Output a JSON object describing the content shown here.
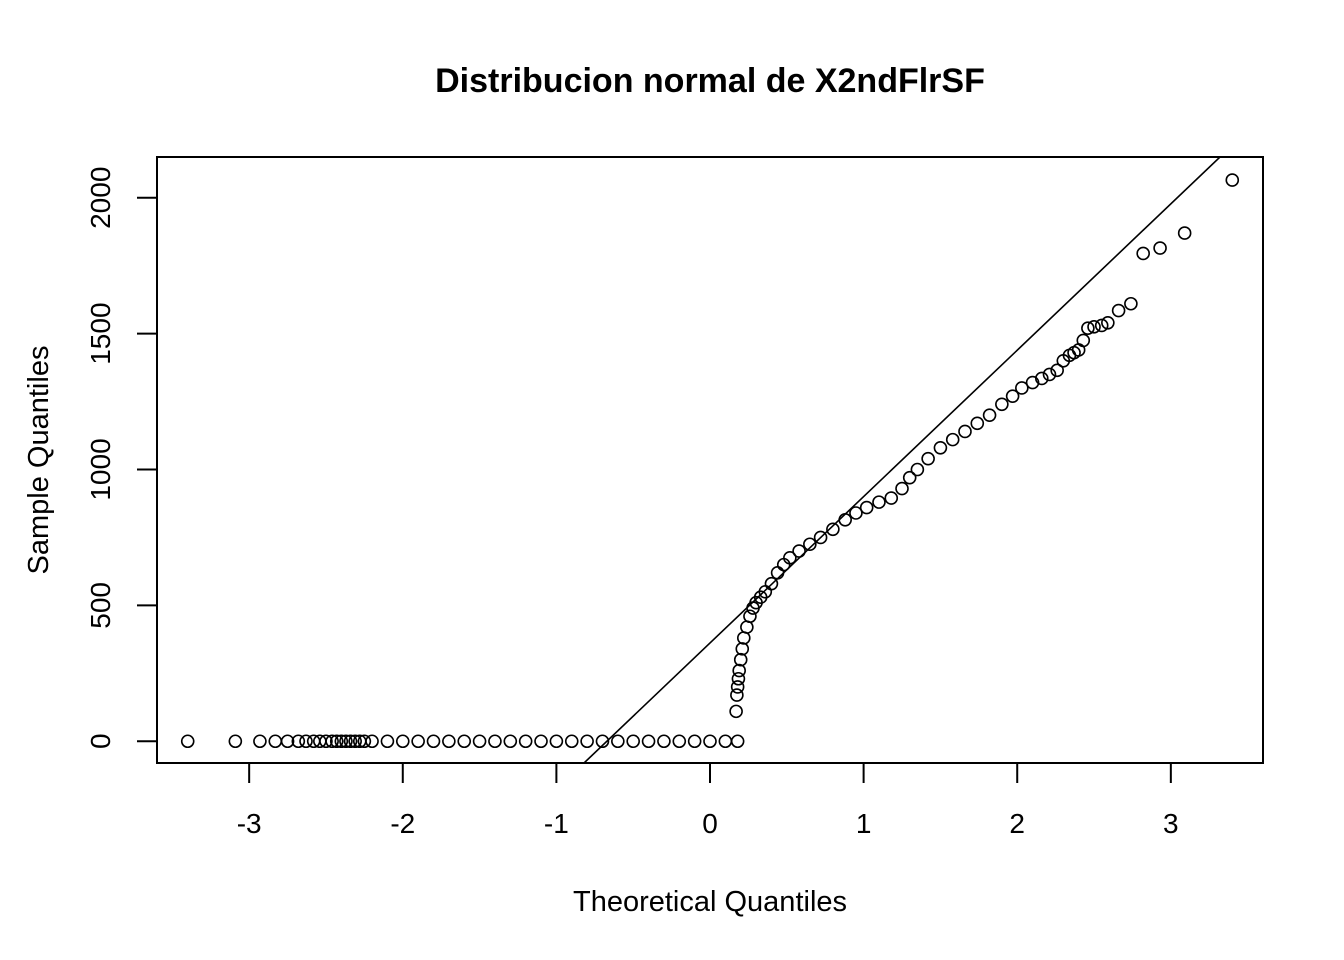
{
  "chart_data": {
    "type": "scatter",
    "title": "Distribucion normal de X2ndFlrSF",
    "xlabel": "Theoretical Quantiles",
    "ylabel": "Sample Quantiles",
    "xlim": [
      -3.6,
      3.6
    ],
    "ylim": [
      -80,
      2150
    ],
    "x_ticks": [
      -3,
      -2,
      -1,
      0,
      1,
      2,
      3
    ],
    "x_tick_labels": [
      "-3",
      "-2",
      "-1",
      "0",
      "1",
      "2",
      "3"
    ],
    "y_ticks": [
      0,
      500,
      1000,
      1500,
      2000
    ],
    "y_tick_labels": [
      "0",
      "500",
      "1000",
      "1500",
      "2000"
    ],
    "grid": false,
    "legend": "none",
    "reference_line": {
      "x1": -0.82,
      "y1": -80,
      "x2": 3.32,
      "y2": 2150
    },
    "series": [
      {
        "points": [
          [
            -3.4,
            0
          ],
          [
            -3.09,
            0
          ],
          [
            -2.93,
            0
          ],
          [
            -2.83,
            0
          ],
          [
            -2.75,
            0
          ],
          [
            -2.68,
            0
          ],
          [
            -2.63,
            0
          ],
          [
            -2.58,
            0
          ],
          [
            -2.54,
            0
          ],
          [
            -2.5,
            0
          ],
          [
            -2.46,
            0
          ],
          [
            -2.43,
            0
          ],
          [
            -2.4,
            0
          ],
          [
            -2.37,
            0
          ],
          [
            -2.34,
            0
          ],
          [
            -2.31,
            0
          ],
          [
            -2.28,
            0
          ],
          [
            -2.25,
            0
          ],
          [
            -2.2,
            0
          ],
          [
            -2.1,
            0
          ],
          [
            -2.0,
            0
          ],
          [
            -1.9,
            0
          ],
          [
            -1.8,
            0
          ],
          [
            -1.7,
            0
          ],
          [
            -1.6,
            0
          ],
          [
            -1.5,
            0
          ],
          [
            -1.4,
            0
          ],
          [
            -1.3,
            0
          ],
          [
            -1.2,
            0
          ],
          [
            -1.1,
            0
          ],
          [
            -1.0,
            0
          ],
          [
            -0.9,
            0
          ],
          [
            -0.8,
            0
          ],
          [
            -0.7,
            0
          ],
          [
            -0.6,
            0
          ],
          [
            -0.5,
            0
          ],
          [
            -0.4,
            0
          ],
          [
            -0.3,
            0
          ],
          [
            -0.2,
            0
          ],
          [
            -0.1,
            0
          ],
          [
            0.0,
            0
          ],
          [
            0.1,
            0
          ],
          [
            0.18,
            0
          ],
          [
            0.17,
            110
          ],
          [
            0.175,
            170
          ],
          [
            0.18,
            200
          ],
          [
            0.185,
            230
          ],
          [
            0.19,
            260
          ],
          [
            0.2,
            300
          ],
          [
            0.21,
            340
          ],
          [
            0.22,
            380
          ],
          [
            0.24,
            420
          ],
          [
            0.26,
            460
          ],
          [
            0.28,
            490
          ],
          [
            0.3,
            510
          ],
          [
            0.33,
            530
          ],
          [
            0.36,
            550
          ],
          [
            0.4,
            580
          ],
          [
            0.44,
            620
          ],
          [
            0.48,
            650
          ],
          [
            0.52,
            675
          ],
          [
            0.58,
            700
          ],
          [
            0.65,
            725
          ],
          [
            0.72,
            750
          ],
          [
            0.8,
            780
          ],
          [
            0.88,
            815
          ],
          [
            0.95,
            840
          ],
          [
            1.02,
            860
          ],
          [
            1.1,
            880
          ],
          [
            1.18,
            895
          ],
          [
            1.25,
            930
          ],
          [
            1.3,
            970
          ],
          [
            1.35,
            1000
          ],
          [
            1.42,
            1040
          ],
          [
            1.5,
            1080
          ],
          [
            1.58,
            1110
          ],
          [
            1.66,
            1140
          ],
          [
            1.74,
            1170
          ],
          [
            1.82,
            1200
          ],
          [
            1.9,
            1240
          ],
          [
            1.97,
            1270
          ],
          [
            2.03,
            1300
          ],
          [
            2.1,
            1320
          ],
          [
            2.16,
            1335
          ],
          [
            2.21,
            1350
          ],
          [
            2.26,
            1365
          ],
          [
            2.3,
            1400
          ],
          [
            2.34,
            1420
          ],
          [
            2.37,
            1430
          ],
          [
            2.4,
            1440
          ],
          [
            2.43,
            1475
          ],
          [
            2.46,
            1520
          ],
          [
            2.5,
            1525
          ],
          [
            2.55,
            1530
          ],
          [
            2.59,
            1540
          ],
          [
            2.66,
            1585
          ],
          [
            2.74,
            1610
          ],
          [
            2.82,
            1795
          ],
          [
            2.93,
            1815
          ],
          [
            3.09,
            1870
          ],
          [
            3.4,
            2065
          ]
        ]
      }
    ]
  }
}
